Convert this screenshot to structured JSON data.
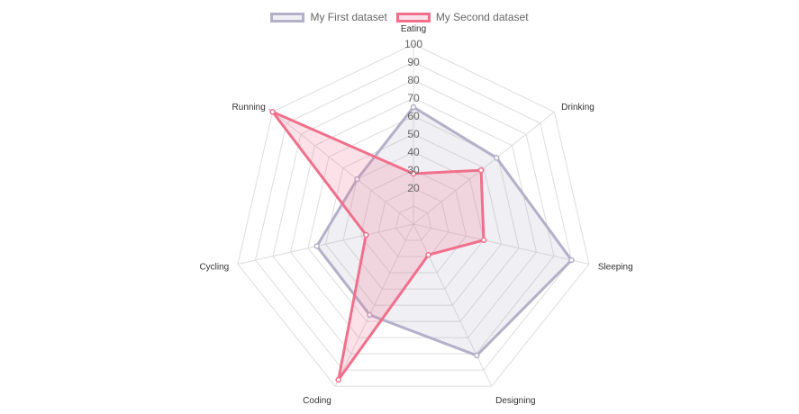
{
  "chart_data": {
    "type": "radar",
    "labels": [
      "Eating",
      "Drinking",
      "Sleeping",
      "Designing",
      "Coding",
      "Cycling",
      "Running"
    ],
    "series": [
      {
        "name": "My First dataset",
        "values": [
          65,
          59,
          90,
          81,
          56,
          55,
          40
        ],
        "border_color": "#b3b0c9",
        "fill_color": "rgba(179,176,201,0.2)"
      },
      {
        "name": "My Second dataset",
        "values": [
          28,
          48,
          40,
          19,
          96,
          27,
          100
        ],
        "border_color": "#f0708c",
        "fill_color": "rgba(240,112,140,0.2)"
      }
    ],
    "r_range": [
      0,
      100
    ],
    "ticks": [
      "20",
      "30",
      "40",
      "50",
      "60",
      "70",
      "80",
      "90",
      "100"
    ],
    "grid_color": "#dddddd",
    "legend_position": "top"
  }
}
